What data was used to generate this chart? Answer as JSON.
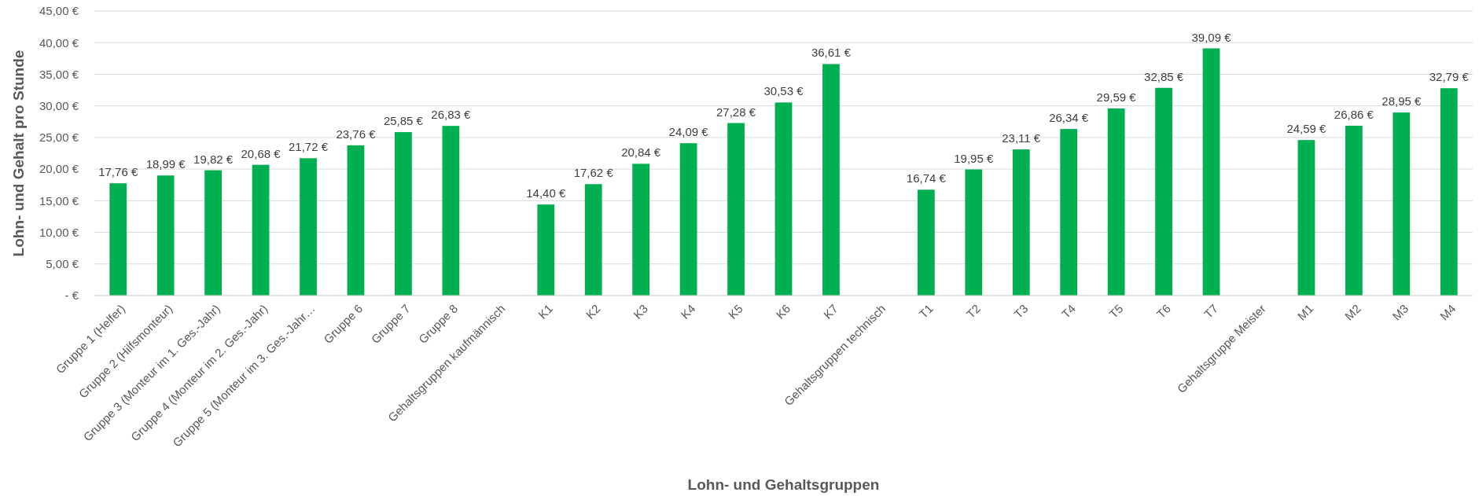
{
  "chart_data": {
    "type": "bar",
    "xlabel": "Lohn- und Gehaltsgruppen",
    "ylabel": "Lohn- und Gehalt pro Stunde",
    "categories": [
      "Gruppe 1 (Helfer)",
      "Gruppe 2 (Hilfsmonteur)",
      "Gruppe 3 (Monteur im 1. Ges.-Jahr)",
      "Gruppe 4 (Monteur im 2. Ges.-Jahr)",
      "Gruppe 5 (Monteur im 3. Ges.-Jahr…",
      "Gruppe 6",
      "Gruppe 7",
      "Gruppe 8",
      "Gehaltsgruppen kaufmännisch",
      "K1",
      "K2",
      "K3",
      "K4",
      "K5",
      "K6",
      "K7",
      "Gehaltsgruppen technisch",
      "T1",
      "T2",
      "T3",
      "T4",
      "T5",
      "T6",
      "T7",
      "Gehaltsgruppe Meister",
      "M1",
      "M2",
      "M3",
      "M4"
    ],
    "values": [
      17.76,
      18.99,
      19.82,
      20.68,
      21.72,
      23.76,
      25.85,
      26.83,
      null,
      14.4,
      17.62,
      20.84,
      24.09,
      27.28,
      30.53,
      36.61,
      null,
      16.74,
      19.95,
      23.11,
      26.34,
      29.59,
      32.85,
      39.09,
      null,
      24.59,
      26.86,
      28.95,
      32.79
    ],
    "value_labels": [
      "17,76 €",
      "18,99 €",
      "19,82 €",
      "20,68 €",
      "21,72 €",
      "23,76 €",
      "25,85 €",
      "26,83 €",
      null,
      "14,40 €",
      "17,62 €",
      "20,84 €",
      "24,09 €",
      "27,28 €",
      "30,53 €",
      "36,61 €",
      null,
      "16,74 €",
      "19,95 €",
      "23,11 €",
      "26,34 €",
      "29,59 €",
      "32,85 €",
      "39,09 €",
      null,
      "24,59 €",
      "26,86 €",
      "28,95 €",
      "32,79 €"
    ],
    "color": "#00b050",
    "ylim": [
      0,
      45
    ],
    "yticks": [
      {
        "value": 0,
        "label": "-   €"
      },
      {
        "value": 5,
        "label": "5,00 €"
      },
      {
        "value": 10,
        "label": "10,00 €"
      },
      {
        "value": 15,
        "label": "15,00 €"
      },
      {
        "value": 20,
        "label": "20,00 €"
      },
      {
        "value": 25,
        "label": "25,00 €"
      },
      {
        "value": 30,
        "label": "30,00 €"
      },
      {
        "value": 35,
        "label": "35,00 €"
      },
      {
        "value": 40,
        "label": "40,00 €"
      },
      {
        "value": 45,
        "label": "45,00 €"
      }
    ],
    "grid": "y"
  }
}
